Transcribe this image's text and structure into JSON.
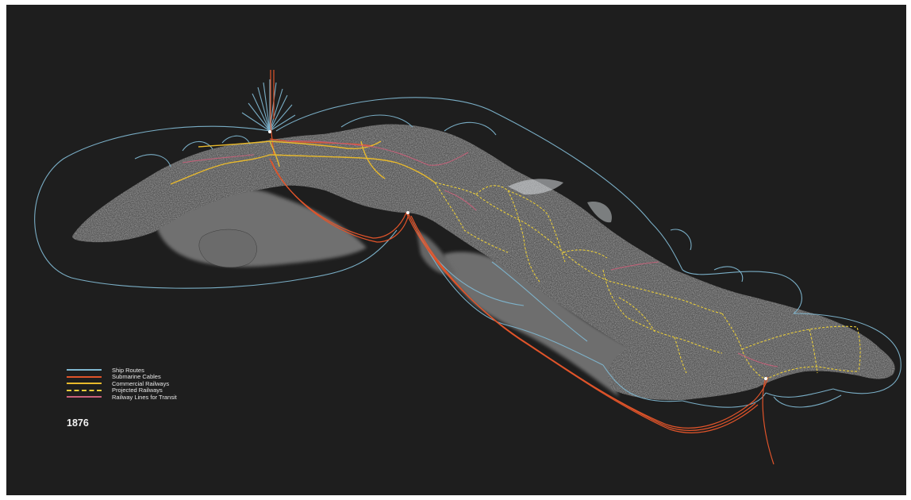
{
  "map": {
    "year": "1876",
    "colors": {
      "background": "#1e1e1e",
      "ship_routes": "#7fb6cf",
      "submarine_cables": "#e0542a",
      "commercial_railways": "#e8b92c",
      "projected_railways": "#e8cc3a",
      "railway_transit": "#c9607a"
    },
    "legend": [
      {
        "id": "ship",
        "label": "Ship Routes",
        "color": "#7fb6cf",
        "style": "solid"
      },
      {
        "id": "cable",
        "label": "Submarine Cables",
        "color": "#e0542a",
        "style": "solid"
      },
      {
        "id": "commercial",
        "label": "Commercial Railways",
        "color": "#e8b92c",
        "style": "solid"
      },
      {
        "id": "projected",
        "label": "Projected Railways",
        "color": "#e8cc3a",
        "style": "dashed"
      },
      {
        "id": "transit",
        "label": "Railway Lines for Transit",
        "color": "#c9607a",
        "style": "solid"
      }
    ]
  }
}
